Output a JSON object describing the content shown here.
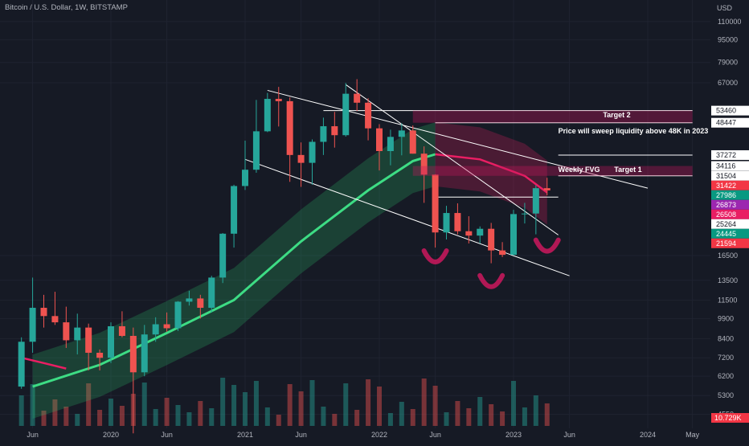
{
  "header": {
    "symbol": "Bitcoin / U.S. Dollar, 1W, BITSTAMP",
    "currency": "USD"
  },
  "colors": {
    "bg": "#161a25",
    "up": "#26a69a",
    "down": "#ef5350",
    "band_green": "#2ecc71",
    "band_red": "#e91e63",
    "ma_green": "#4caf50",
    "ma_purple": "#9c27b0",
    "line": "#ffffff",
    "zone": "#c2185b"
  },
  "chart_data": {
    "type": "candlestick",
    "y_scale": "log",
    "y_ticks": [
      110000,
      95000,
      79000,
      67000,
      16500,
      13500,
      11500,
      9900,
      8400,
      7200,
      6200,
      5300,
      4550
    ],
    "x_ticks": [
      "Jun",
      "2020",
      "Jun",
      "2021",
      "Jun",
      "2022",
      "Jun",
      "2023",
      "Jun",
      "2024",
      "May"
    ],
    "ohlc": [
      {
        "t": "2019-05",
        "o": 5700,
        "h": 8500,
        "l": 5600,
        "c": 8200
      },
      {
        "t": "2019-06",
        "o": 8200,
        "h": 13800,
        "l": 7500,
        "c": 10800
      },
      {
        "t": "2019-07",
        "o": 10800,
        "h": 12000,
        "l": 9200,
        "c": 10100
      },
      {
        "t": "2019-08",
        "o": 10100,
        "h": 12300,
        "l": 9400,
        "c": 9600
      },
      {
        "t": "2019-09",
        "o": 9600,
        "h": 10900,
        "l": 7800,
        "c": 8300
      },
      {
        "t": "2019-10",
        "o": 8300,
        "h": 10300,
        "l": 7400,
        "c": 9200
      },
      {
        "t": "2019-11",
        "o": 9200,
        "h": 9500,
        "l": 6500,
        "c": 7500
      },
      {
        "t": "2019-12",
        "o": 7500,
        "h": 7700,
        "l": 6500,
        "c": 7200
      },
      {
        "t": "2020-01",
        "o": 7200,
        "h": 9600,
        "l": 6900,
        "c": 9300
      },
      {
        "t": "2020-02",
        "o": 9300,
        "h": 10500,
        "l": 8500,
        "c": 8600
      },
      {
        "t": "2020-03",
        "o": 8600,
        "h": 9200,
        "l": 3900,
        "c": 6400
      },
      {
        "t": "2020-04",
        "o": 6400,
        "h": 9400,
        "l": 6200,
        "c": 8700
      },
      {
        "t": "2020-05",
        "o": 8700,
        "h": 10000,
        "l": 8200,
        "c": 9450
      },
      {
        "t": "2020-06",
        "o": 9450,
        "h": 10400,
        "l": 8900,
        "c": 9150
      },
      {
        "t": "2020-07",
        "o": 9150,
        "h": 11400,
        "l": 8950,
        "c": 11350
      },
      {
        "t": "2020-08",
        "o": 11350,
        "h": 12400,
        "l": 11000,
        "c": 11650
      },
      {
        "t": "2020-09",
        "o": 11650,
        "h": 12000,
        "l": 9900,
        "c": 10800
      },
      {
        "t": "2020-10",
        "o": 10800,
        "h": 14000,
        "l": 10400,
        "c": 13800
      },
      {
        "t": "2020-11",
        "o": 13800,
        "h": 19800,
        "l": 13200,
        "c": 19700
      },
      {
        "t": "2020-12",
        "o": 19700,
        "h": 29300,
        "l": 17600,
        "c": 29000
      },
      {
        "t": "2021-01",
        "o": 29000,
        "h": 41900,
        "l": 28100,
        "c": 33100
      },
      {
        "t": "2021-02",
        "o": 33100,
        "h": 58300,
        "l": 32300,
        "c": 45200
      },
      {
        "t": "2021-03",
        "o": 45200,
        "h": 61700,
        "l": 44900,
        "c": 58800
      },
      {
        "t": "2021-04",
        "o": 58800,
        "h": 64800,
        "l": 47000,
        "c": 57700
      },
      {
        "t": "2021-05",
        "o": 57700,
        "h": 59500,
        "l": 30000,
        "c": 37300
      },
      {
        "t": "2021-06",
        "o": 37300,
        "h": 41300,
        "l": 28800,
        "c": 35000
      },
      {
        "t": "2021-07",
        "o": 35000,
        "h": 42300,
        "l": 29300,
        "c": 41500
      },
      {
        "t": "2021-08",
        "o": 41500,
        "h": 50500,
        "l": 37300,
        "c": 47100
      },
      {
        "t": "2021-09",
        "o": 47100,
        "h": 52900,
        "l": 39600,
        "c": 43800
      },
      {
        "t": "2021-10",
        "o": 43800,
        "h": 66900,
        "l": 43300,
        "c": 61300
      },
      {
        "t": "2021-11",
        "o": 61300,
        "h": 69000,
        "l": 53300,
        "c": 57000
      },
      {
        "t": "2021-12",
        "o": 57000,
        "h": 59100,
        "l": 42000,
        "c": 46300
      },
      {
        "t": "2022-01",
        "o": 46300,
        "h": 47900,
        "l": 32900,
        "c": 38500
      },
      {
        "t": "2022-02",
        "o": 38500,
        "h": 45800,
        "l": 34300,
        "c": 43200
      },
      {
        "t": "2022-03",
        "o": 43200,
        "h": 48200,
        "l": 37200,
        "c": 45500
      },
      {
        "t": "2022-04",
        "o": 45500,
        "h": 47400,
        "l": 37700,
        "c": 37700
      },
      {
        "t": "2022-05",
        "o": 37700,
        "h": 40000,
        "l": 25300,
        "c": 31800
      },
      {
        "t": "2022-06",
        "o": 31800,
        "h": 31900,
        "l": 17600,
        "c": 19900
      },
      {
        "t": "2022-07",
        "o": 19900,
        "h": 24700,
        "l": 18800,
        "c": 23300
      },
      {
        "t": "2022-08",
        "o": 23300,
        "h": 25200,
        "l": 19600,
        "c": 20100
      },
      {
        "t": "2022-09",
        "o": 20100,
        "h": 22700,
        "l": 18200,
        "c": 19400
      },
      {
        "t": "2022-10",
        "o": 19400,
        "h": 20900,
        "l": 18200,
        "c": 20500
      },
      {
        "t": "2022-11",
        "o": 20500,
        "h": 21500,
        "l": 15500,
        "c": 17200
      },
      {
        "t": "2022-12",
        "o": 17200,
        "h": 18400,
        "l": 16300,
        "c": 16600
      },
      {
        "t": "2023-01",
        "o": 16600,
        "h": 23900,
        "l": 16500,
        "c": 23100
      },
      {
        "t": "2023-02",
        "o": 23100,
        "h": 25300,
        "l": 21400,
        "c": 23200
      },
      {
        "t": "2023-03",
        "o": 23200,
        "h": 29200,
        "l": 19600,
        "c": 28500
      },
      {
        "t": "2023-04",
        "o": 28500,
        "h": 31000,
        "l": 26900,
        "c": 27986
      }
    ]
  },
  "price_labels": [
    {
      "text": "53460",
      "color": "#ffffff",
      "fg": "#131722",
      "value": 53460
    },
    {
      "text": "48447",
      "color": "#ffffff",
      "fg": "#131722",
      "value": 48447
    },
    {
      "text": "37272",
      "color": "#ffffff",
      "fg": "#131722",
      "value": 37272
    },
    {
      "text": "34116",
      "color": "#ffffff",
      "fg": "#131722",
      "value": 34116
    },
    {
      "text": "31504",
      "color": "#ffffff",
      "fg": "#131722",
      "value": 31504
    },
    {
      "text": "31422",
      "color": "#f23645",
      "fg": "#ffffff",
      "value": 31422
    },
    {
      "text": "27986",
      "color": "#089981",
      "fg": "#ffffff",
      "value": 27986
    },
    {
      "text": "26873",
      "color": "#9c27b0",
      "fg": "#ffffff",
      "value": 26873
    },
    {
      "text": "26508",
      "color": "#e91e63",
      "fg": "#ffffff",
      "value": 26508
    },
    {
      "text": "25264",
      "color": "#ffffff",
      "fg": "#131722",
      "value": 25264
    },
    {
      "text": "24445",
      "color": "#089981",
      "fg": "#ffffff",
      "value": 24445
    },
    {
      "text": "21594",
      "color": "#f23645",
      "fg": "#ffffff",
      "value": 21594
    }
  ],
  "volume_label": "10.729K",
  "annotations": {
    "target2": "Target 2",
    "sweep": "Price will sweep liquidity above 48K in  2023",
    "weekly_fvg": "Weekly FVG",
    "target1": "Target 1"
  }
}
